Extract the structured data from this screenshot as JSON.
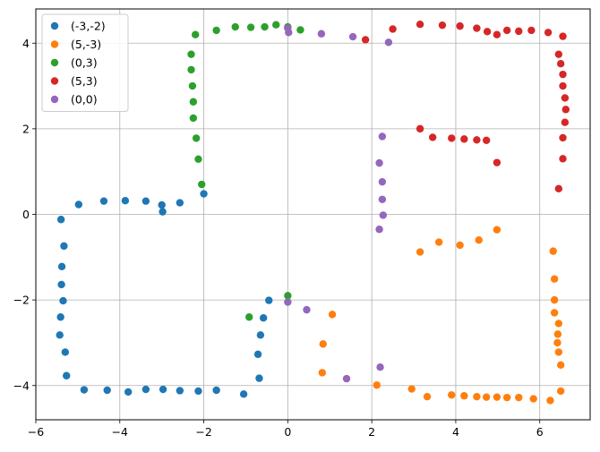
{
  "chart_data": {
    "type": "scatter",
    "title": "",
    "xlabel": "",
    "ylabel": "",
    "xlim": [
      -6,
      7.2
    ],
    "ylim": [
      -4.8,
      4.8
    ],
    "xticks": [
      -6,
      -4,
      -2,
      0,
      2,
      4,
      6
    ],
    "yticks": [
      -4,
      -2,
      0,
      2,
      4
    ],
    "xtick_labels": [
      "−6",
      "−4",
      "−2",
      "0",
      "2",
      "4",
      "6"
    ],
    "ytick_labels": [
      "−4",
      "−2",
      "0",
      "2",
      "4"
    ],
    "grid": true,
    "legend_position": "top-left",
    "series": [
      {
        "name": "(-3,-2)",
        "color": "#1f77b4",
        "points": [
          [
            -5.4,
            -0.12
          ],
          [
            -5.33,
            -0.74
          ],
          [
            -5.38,
            -1.22
          ],
          [
            -5.39,
            -1.64
          ],
          [
            -5.35,
            -2.02
          ],
          [
            -5.41,
            -2.4
          ],
          [
            -5.43,
            -2.82
          ],
          [
            -5.3,
            -3.22
          ],
          [
            -5.27,
            -3.77
          ],
          [
            -4.85,
            -4.1
          ],
          [
            -4.3,
            -4.11
          ],
          [
            -3.8,
            -4.15
          ],
          [
            -3.38,
            -4.09
          ],
          [
            -2.97,
            -4.09
          ],
          [
            -2.57,
            -4.12
          ],
          [
            -2.13,
            -4.13
          ],
          [
            -1.7,
            -4.11
          ],
          [
            -1.05,
            -4.2
          ],
          [
            -0.68,
            -3.83
          ],
          [
            -0.71,
            -3.27
          ],
          [
            -0.65,
            -2.82
          ],
          [
            -0.58,
            -2.42
          ],
          [
            -0.45,
            -2.01
          ],
          [
            -2.0,
            0.48
          ],
          [
            -2.57,
            0.27
          ],
          [
            -2.98,
            0.06
          ],
          [
            -3.0,
            0.22
          ],
          [
            -3.38,
            0.31
          ],
          [
            -3.87,
            0.32
          ],
          [
            -4.38,
            0.31
          ],
          [
            -4.98,
            0.23
          ]
        ]
      },
      {
        "name": "(5,-3)",
        "color": "#ff7f0e",
        "points": [
          [
            3.15,
            -0.88
          ],
          [
            3.6,
            -0.65
          ],
          [
            4.1,
            -0.72
          ],
          [
            4.55,
            -0.6
          ],
          [
            4.98,
            -0.36
          ],
          [
            1.06,
            -2.34
          ],
          [
            0.84,
            -3.03
          ],
          [
            0.82,
            -3.7
          ],
          [
            2.12,
            -3.99
          ],
          [
            2.95,
            -4.08
          ],
          [
            3.32,
            -4.26
          ],
          [
            3.9,
            -4.22
          ],
          [
            4.2,
            -4.24
          ],
          [
            4.5,
            -4.26
          ],
          [
            4.73,
            -4.27
          ],
          [
            4.98,
            -4.27
          ],
          [
            5.22,
            -4.28
          ],
          [
            5.5,
            -4.28
          ],
          [
            5.85,
            -4.31
          ],
          [
            6.25,
            -4.35
          ],
          [
            6.5,
            -4.13
          ],
          [
            6.5,
            -3.52
          ],
          [
            6.45,
            -3.22
          ],
          [
            6.42,
            -3.0
          ],
          [
            6.43,
            -2.8
          ],
          [
            6.45,
            -2.55
          ],
          [
            6.35,
            -2.3
          ],
          [
            6.35,
            -2.0
          ],
          [
            6.35,
            -1.51
          ],
          [
            6.32,
            -0.86
          ]
        ]
      },
      {
        "name": "(0,3)",
        "color": "#2ca02c",
        "points": [
          [
            -2.05,
            0.7
          ],
          [
            -2.13,
            1.29
          ],
          [
            -2.18,
            1.78
          ],
          [
            -2.25,
            2.25
          ],
          [
            -2.25,
            2.63
          ],
          [
            -2.27,
            3.0
          ],
          [
            -2.3,
            3.38
          ],
          [
            -2.3,
            3.74
          ],
          [
            -2.2,
            4.2
          ],
          [
            -1.7,
            4.3
          ],
          [
            -1.25,
            4.38
          ],
          [
            -0.88,
            4.37
          ],
          [
            -0.55,
            4.38
          ],
          [
            -0.28,
            4.43
          ],
          [
            0.0,
            4.38
          ],
          [
            0.3,
            4.31
          ],
          [
            -0.92,
            -2.4
          ],
          [
            0.0,
            -1.9
          ]
        ]
      },
      {
        "name": "(5,3)",
        "color": "#d62728",
        "points": [
          [
            1.85,
            4.08
          ],
          [
            2.5,
            4.33
          ],
          [
            3.15,
            4.44
          ],
          [
            3.68,
            4.42
          ],
          [
            4.1,
            4.4
          ],
          [
            4.5,
            4.35
          ],
          [
            4.75,
            4.27
          ],
          [
            4.98,
            4.2
          ],
          [
            5.22,
            4.3
          ],
          [
            5.5,
            4.28
          ],
          [
            5.8,
            4.3
          ],
          [
            6.2,
            4.25
          ],
          [
            6.55,
            4.16
          ],
          [
            6.45,
            3.74
          ],
          [
            6.5,
            3.52
          ],
          [
            6.55,
            3.27
          ],
          [
            6.55,
            3.0
          ],
          [
            6.6,
            2.72
          ],
          [
            6.62,
            2.45
          ],
          [
            6.6,
            2.15
          ],
          [
            6.55,
            1.79
          ],
          [
            6.55,
            1.3
          ],
          [
            6.45,
            0.6
          ],
          [
            3.15,
            2.0
          ],
          [
            3.45,
            1.8
          ],
          [
            3.9,
            1.78
          ],
          [
            4.2,
            1.76
          ],
          [
            4.5,
            1.74
          ],
          [
            4.73,
            1.73
          ],
          [
            4.98,
            1.21
          ]
        ]
      },
      {
        "name": "(0,0)",
        "color": "#9467bd",
        "points": [
          [
            0.0,
            4.35
          ],
          [
            0.02,
            4.25
          ],
          [
            0.8,
            4.22
          ],
          [
            1.55,
            4.15
          ],
          [
            2.4,
            4.02
          ],
          [
            2.25,
            1.82
          ],
          [
            2.18,
            1.2
          ],
          [
            2.25,
            0.76
          ],
          [
            2.25,
            0.35
          ],
          [
            2.27,
            -0.02
          ],
          [
            2.18,
            -0.35
          ],
          [
            0.0,
            -2.05
          ],
          [
            0.45,
            -2.23
          ],
          [
            2.2,
            -3.57
          ],
          [
            1.4,
            -3.84
          ]
        ]
      }
    ]
  }
}
